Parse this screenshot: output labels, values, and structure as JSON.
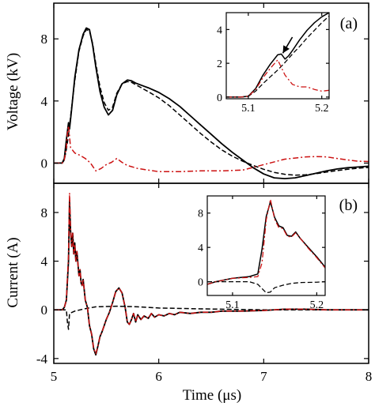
{
  "chart_data": [
    {
      "type": "line",
      "panel_label": "(a)",
      "xlim": [
        5,
        8
      ],
      "ylim": [
        -1.3,
        10.3
      ],
      "ylabel": "Voltage (kV)",
      "xlabel": "",
      "yticks": [
        0,
        4,
        8
      ],
      "ytick_labels": [
        "0",
        "4",
        "8"
      ],
      "xticks": [
        5,
        6,
        7,
        8
      ],
      "colors": {
        "solid": "#000000",
        "dashed": "#000000",
        "dashdot": "#cc1111"
      },
      "series": [
        {
          "style": "solid",
          "x": [
            5.0,
            5.08,
            5.1,
            5.12,
            5.14,
            5.15,
            5.17,
            5.2,
            5.24,
            5.28,
            5.31,
            5.34,
            5.37,
            5.4,
            5.44,
            5.48,
            5.52,
            5.56,
            5.6,
            5.65,
            5.7,
            5.74,
            5.78,
            5.82,
            5.86,
            5.9,
            6.0,
            6.1,
            6.2,
            6.3,
            6.4,
            6.5,
            6.6,
            6.7,
            6.8,
            6.9,
            7.0,
            7.1,
            7.2,
            7.3,
            7.4,
            7.5,
            7.6,
            7.7,
            7.8,
            7.9,
            8.0
          ],
          "values": [
            0,
            0,
            0.3,
            1.5,
            2.6,
            2.2,
            3.5,
            5.5,
            7.3,
            8.3,
            8.7,
            8.6,
            7.6,
            6.2,
            4.6,
            3.6,
            3.1,
            3.4,
            4.4,
            5.1,
            5.35,
            5.3,
            5.15,
            5.05,
            4.95,
            4.85,
            4.55,
            4.15,
            3.65,
            3.05,
            2.45,
            1.85,
            1.25,
            0.7,
            0.2,
            -0.3,
            -0.7,
            -0.95,
            -1.0,
            -0.95,
            -0.8,
            -0.65,
            -0.5,
            -0.38,
            -0.3,
            -0.25,
            -0.2
          ]
        },
        {
          "style": "dashed",
          "x": [
            5.0,
            5.08,
            5.1,
            5.12,
            5.14,
            5.16,
            5.2,
            5.24,
            5.28,
            5.31,
            5.34,
            5.37,
            5.4,
            5.44,
            5.48,
            5.52,
            5.56,
            5.6,
            5.65,
            5.7,
            5.74,
            5.78,
            5.82,
            5.86,
            5.9,
            6.0,
            6.1,
            6.2,
            6.3,
            6.4,
            6.5,
            6.6,
            6.7,
            6.8,
            6.9,
            7.0,
            7.1,
            7.2,
            7.3,
            7.4,
            7.5,
            7.6,
            7.7,
            7.8,
            7.9,
            8.0
          ],
          "values": [
            0,
            0,
            0.2,
            0.9,
            1.8,
            3.0,
            5.3,
            7.2,
            8.2,
            8.6,
            8.5,
            7.7,
            6.4,
            4.9,
            3.9,
            3.4,
            3.6,
            4.5,
            5.1,
            5.25,
            5.2,
            5.05,
            4.9,
            4.75,
            4.6,
            4.2,
            3.7,
            3.1,
            2.5,
            1.9,
            1.35,
            0.85,
            0.45,
            0.12,
            -0.15,
            -0.4,
            -0.6,
            -0.72,
            -0.78,
            -0.75,
            -0.68,
            -0.58,
            -0.48,
            -0.4,
            -0.33,
            -0.28
          ]
        },
        {
          "style": "dashdot",
          "x": [
            5.0,
            5.08,
            5.1,
            5.12,
            5.13,
            5.14,
            5.16,
            5.2,
            5.25,
            5.3,
            5.35,
            5.4,
            5.45,
            5.5,
            5.55,
            5.6,
            5.65,
            5.7,
            5.8,
            5.9,
            6.0,
            6.2,
            6.4,
            6.6,
            6.8,
            7.0,
            7.2,
            7.4,
            7.5,
            7.6,
            7.7,
            7.8,
            7.9,
            8.0
          ],
          "values": [
            0,
            0,
            0.2,
            1.0,
            1.9,
            2.4,
            1.0,
            0.65,
            0.5,
            0.3,
            0.0,
            -0.5,
            -0.35,
            -0.1,
            0.05,
            0.3,
            0.05,
            -0.15,
            -0.35,
            -0.45,
            -0.55,
            -0.55,
            -0.5,
            -0.5,
            -0.45,
            -0.1,
            0.25,
            0.4,
            0.42,
            0.4,
            0.3,
            0.2,
            0.12,
            0.1
          ]
        }
      ],
      "inset": {
        "xlim": [
          5.07,
          5.21
        ],
        "ylim": [
          -0.1,
          5.0
        ],
        "xticks": [
          5.1,
          5.2
        ],
        "xtick_labels": [
          "5.1",
          "5.2"
        ],
        "yticks": [
          0,
          2,
          4
        ],
        "ytick_labels": [
          "0",
          "2",
          "4"
        ],
        "arrow": {
          "from": [
            5.16,
            3.55
          ],
          "to": [
            5.147,
            2.6
          ]
        },
        "series": [
          {
            "style": "solid",
            "x": [
              5.07,
              5.09,
              5.1,
              5.11,
              5.12,
              5.13,
              5.14,
              5.145,
              5.15,
              5.155,
              5.16,
              5.17,
              5.18,
              5.19,
              5.2,
              5.21
            ],
            "values": [
              0,
              0,
              0.05,
              0.5,
              1.3,
              1.95,
              2.5,
              2.55,
              2.25,
              2.45,
              2.75,
              3.4,
              3.95,
              4.4,
              4.75,
              5.0
            ]
          },
          {
            "style": "dashed",
            "x": [
              5.07,
              5.09,
              5.1,
              5.11,
              5.12,
              5.13,
              5.14,
              5.15,
              5.16,
              5.17,
              5.18,
              5.19,
              5.2,
              5.21
            ],
            "values": [
              0,
              0,
              0.05,
              0.35,
              0.8,
              1.2,
              1.6,
              2.05,
              2.55,
              3.0,
              3.5,
              3.95,
              4.4,
              4.8
            ]
          },
          {
            "style": "dashdot",
            "x": [
              5.07,
              5.09,
              5.1,
              5.11,
              5.12,
              5.13,
              5.14,
              5.15,
              5.16,
              5.17,
              5.18,
              5.19,
              5.2,
              5.21
            ],
            "values": [
              0,
              0,
              0.05,
              0.45,
              1.15,
              1.7,
              2.2,
              1.3,
              0.75,
              0.6,
              0.6,
              0.45,
              0.35,
              0.4
            ]
          }
        ]
      }
    },
    {
      "type": "line",
      "panel_label": "(b)",
      "xlim": [
        5,
        8
      ],
      "ylim": [
        -4.4,
        10.4
      ],
      "ylabel": "Current (A)",
      "xlabel": "Time (μs)",
      "yticks": [
        -4,
        0,
        4,
        8
      ],
      "ytick_labels": [
        "-4",
        "0",
        "4",
        "8"
      ],
      "xticks": [
        5,
        6,
        7,
        8
      ],
      "xtick_labels": [
        "5",
        "6",
        "7",
        "8"
      ],
      "colors": {
        "solid": "#000000",
        "dashed": "#000000",
        "dashdot": "#cc1111"
      },
      "series": [
        {
          "style": "solid",
          "x": [
            5.0,
            5.08,
            5.1,
            5.12,
            5.14,
            5.15,
            5.16,
            5.17,
            5.18,
            5.19,
            5.2,
            5.21,
            5.22,
            5.23,
            5.24,
            5.25,
            5.26,
            5.27,
            5.28,
            5.3,
            5.32,
            5.34,
            5.36,
            5.38,
            5.4,
            5.42,
            5.44,
            5.46,
            5.48,
            5.5,
            5.53,
            5.56,
            5.59,
            5.62,
            5.65,
            5.68,
            5.7,
            5.72,
            5.74,
            5.76,
            5.78,
            5.8,
            5.83,
            5.86,
            5.9,
            5.93,
            5.96,
            6.0,
            6.05,
            6.1,
            6.15,
            6.2,
            6.3,
            6.4,
            6.5,
            6.6,
            6.8,
            7.0,
            7.2,
            7.4,
            7.6,
            7.8,
            8.0
          ],
          "values": [
            0,
            0,
            0.2,
            0.8,
            4.0,
            9.0,
            6.5,
            5.2,
            6.3,
            4.6,
            5.5,
            4.0,
            4.8,
            3.8,
            2.8,
            3.3,
            2.2,
            2.0,
            2.5,
            0.8,
            0.2,
            -1.3,
            -2.0,
            -3.2,
            -3.7,
            -3.0,
            -2.2,
            -1.8,
            -1.3,
            -0.8,
            -0.2,
            0.6,
            1.5,
            1.8,
            1.4,
            0.2,
            -1.0,
            -1.2,
            -0.8,
            -0.3,
            -1.0,
            -0.4,
            -0.8,
            -0.5,
            -0.7,
            -0.3,
            -0.6,
            -0.4,
            -0.5,
            -0.3,
            -0.4,
            -0.2,
            -0.3,
            -0.2,
            -0.2,
            -0.1,
            -0.1,
            -0.05,
            0.05,
            0.05,
            0.0,
            0.0,
            0.0
          ]
        },
        {
          "style": "dashed",
          "x": [
            5.0,
            5.1,
            5.12,
            5.13,
            5.14,
            5.15,
            5.2,
            5.3,
            5.4,
            5.6,
            5.8,
            6.0,
            6.3,
            6.6,
            7.0,
            7.4,
            7.8,
            8.0
          ],
          "values": [
            0,
            0,
            0.0,
            -1.0,
            -1.6,
            -0.3,
            -0.1,
            0.1,
            0.25,
            0.3,
            0.25,
            0.15,
            0.1,
            0.05,
            0.0,
            0.0,
            0.0,
            0.0
          ]
        },
        {
          "style": "dashdot",
          "x": [
            5.0,
            5.08,
            5.1,
            5.12,
            5.14,
            5.15,
            5.16,
            5.17,
            5.18,
            5.19,
            5.2,
            5.21,
            5.22,
            5.23,
            5.24,
            5.25,
            5.26,
            5.27,
            5.28,
            5.3,
            5.32,
            5.34,
            5.36,
            5.38,
            5.4,
            5.42,
            5.44,
            5.46,
            5.48,
            5.5,
            5.53,
            5.56,
            5.59,
            5.62,
            5.65,
            5.68,
            5.7,
            5.72,
            5.74,
            5.76,
            5.78,
            5.8,
            5.83,
            5.86,
            5.9,
            5.93,
            5.96,
            6.0,
            6.05,
            6.1,
            6.15,
            6.2,
            6.3,
            6.4,
            6.5,
            6.6,
            6.8,
            7.0,
            7.2,
            7.4,
            7.6,
            7.8,
            8.0
          ],
          "values": [
            0,
            0,
            0.2,
            0.8,
            4.5,
            9.6,
            6.7,
            5.2,
            6.3,
            4.6,
            5.4,
            4.0,
            4.8,
            3.8,
            2.8,
            3.3,
            2.2,
            2.0,
            2.5,
            0.8,
            0.2,
            -1.3,
            -2.0,
            -3.2,
            -3.6,
            -3.0,
            -2.2,
            -1.8,
            -1.3,
            -0.8,
            -0.2,
            0.6,
            1.5,
            1.8,
            1.4,
            0.2,
            -1.0,
            -1.2,
            -0.8,
            -0.3,
            -1.0,
            -0.4,
            -0.8,
            -0.5,
            -0.7,
            -0.3,
            -0.6,
            -0.4,
            -0.5,
            -0.3,
            -0.4,
            -0.2,
            -0.3,
            -0.2,
            -0.2,
            -0.1,
            -0.1,
            -0.05,
            0.05,
            0.05,
            0.0,
            0.0,
            0.0
          ]
        }
      ],
      "inset": {
        "xlim": [
          5.07,
          5.21
        ],
        "ylim": [
          -1.6,
          10.0
        ],
        "xticks": [
          5.1,
          5.2
        ],
        "xtick_labels": [
          "5.1",
          "5.2"
        ],
        "yticks": [
          0,
          4,
          8
        ],
        "ytick_labels": [
          "0",
          "4",
          "8"
        ],
        "series": [
          {
            "style": "solid",
            "x": [
              5.07,
              5.08,
              5.1,
              5.12,
              5.13,
              5.135,
              5.14,
              5.145,
              5.15,
              5.155,
              5.16,
              5.165,
              5.17,
              5.175,
              5.18,
              5.19,
              5.2,
              5.205,
              5.21
            ],
            "values": [
              -0.3,
              0.0,
              0.4,
              0.6,
              0.9,
              3.8,
              7.6,
              9.3,
              7.5,
              6.5,
              6.3,
              5.4,
              5.3,
              5.8,
              5.1,
              4.0,
              2.9,
              2.3,
              1.7
            ]
          },
          {
            "style": "dashed",
            "x": [
              5.07,
              5.1,
              5.12,
              5.13,
              5.14,
              5.145,
              5.15,
              5.16,
              5.17,
              5.18,
              5.2,
              5.21
            ],
            "values": [
              0,
              0,
              0.0,
              -0.3,
              -1.3,
              -1.2,
              -0.7,
              -0.4,
              -0.2,
              -0.1,
              -0.05,
              0.0
            ]
          },
          {
            "style": "dashdot",
            "x": [
              5.07,
              5.08,
              5.1,
              5.12,
              5.13,
              5.135,
              5.14,
              5.145,
              5.15,
              5.155,
              5.16,
              5.165,
              5.17,
              5.175,
              5.18,
              5.19,
              5.2,
              5.205,
              5.21
            ],
            "values": [
              -0.3,
              0.0,
              0.4,
              0.5,
              0.6,
              2.2,
              7.2,
              9.6,
              7.3,
              6.3,
              6.2,
              5.3,
              5.2,
              5.7,
              5.1,
              3.9,
              2.8,
              2.2,
              1.6
            ]
          }
        ]
      }
    }
  ]
}
